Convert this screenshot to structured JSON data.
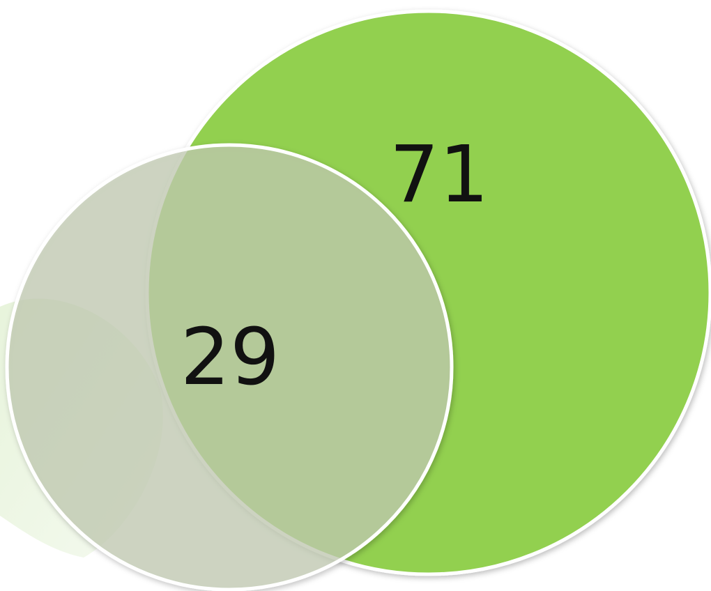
{
  "chart_data": {
    "type": "venn",
    "values": [
      71,
      29
    ],
    "colors": [
      "#92d050",
      "#c4cdb4"
    ]
  }
}
